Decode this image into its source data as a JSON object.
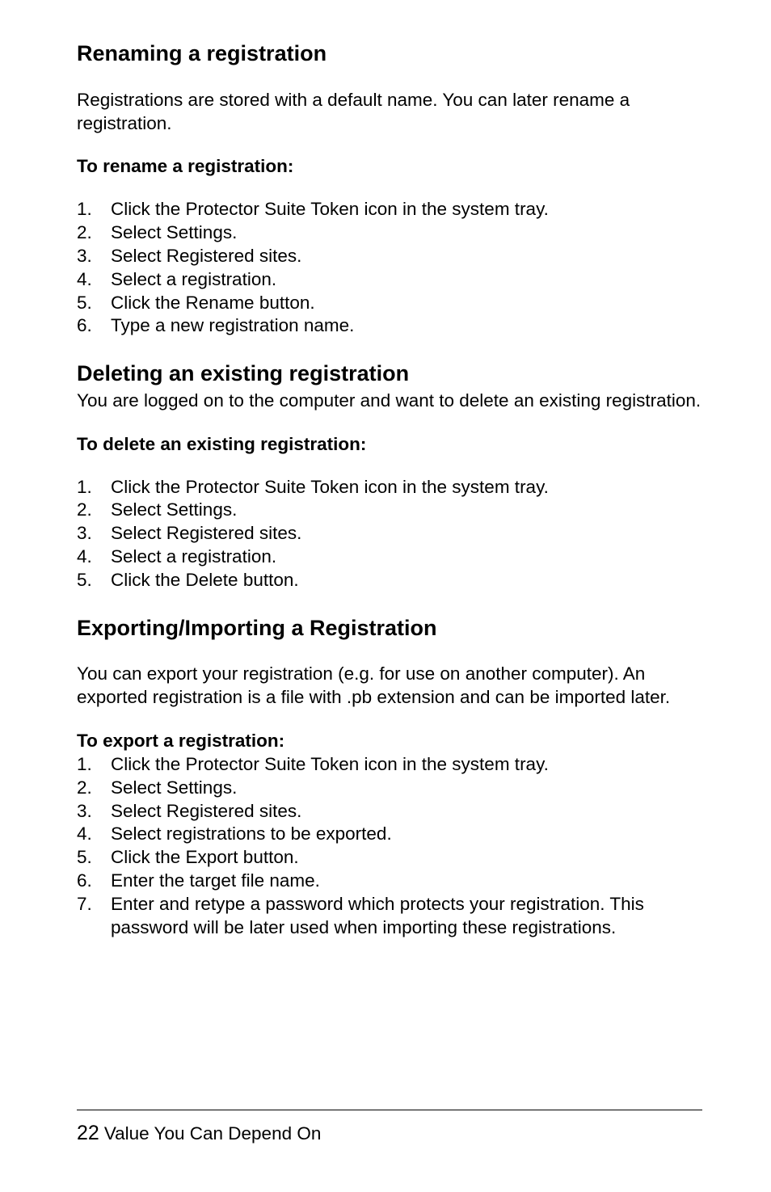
{
  "sections": {
    "renaming": {
      "title": "Renaming a registration",
      "intro": "Registrations are stored with a default name. You can later rename a registration.",
      "lead": "To rename a registration:",
      "steps": [
        "Click the Protector Suite Token icon in the system tray.",
        "Select Settings.",
        "Select Registered sites.",
        "Select a registration.",
        "Click the Rename button.",
        "Type a new registration name."
      ]
    },
    "deleting": {
      "title": "Deleting an existing registration",
      "intro": "You are logged on to the computer and want to delete an existing registration.",
      "lead": "To delete an existing registration:",
      "steps": [
        "Click the Protector Suite Token icon in the system tray.",
        "Select Settings.",
        "Select Registered sites.",
        "Select a registration.",
        "Click the Delete button."
      ]
    },
    "exporting": {
      "title": "Exporting/Importing a Registration",
      "intro": "You can export your registration (e.g. for use on another computer). An exported registration is a file with .pb extension and can be imported later.",
      "lead": "To export a registration:",
      "steps": [
        "Click the Protector Suite Token icon in the system tray.",
        "Select Settings.",
        "Select Registered sites.",
        "Select registrations to be exported.",
        "Click the Export button.",
        "Enter the target file name.",
        "Enter and retype a password which protects your registration. This password will be later used when importing these registrations."
      ]
    }
  },
  "footer": {
    "page_number": "22",
    "tagline": "Value You Can Depend On"
  }
}
